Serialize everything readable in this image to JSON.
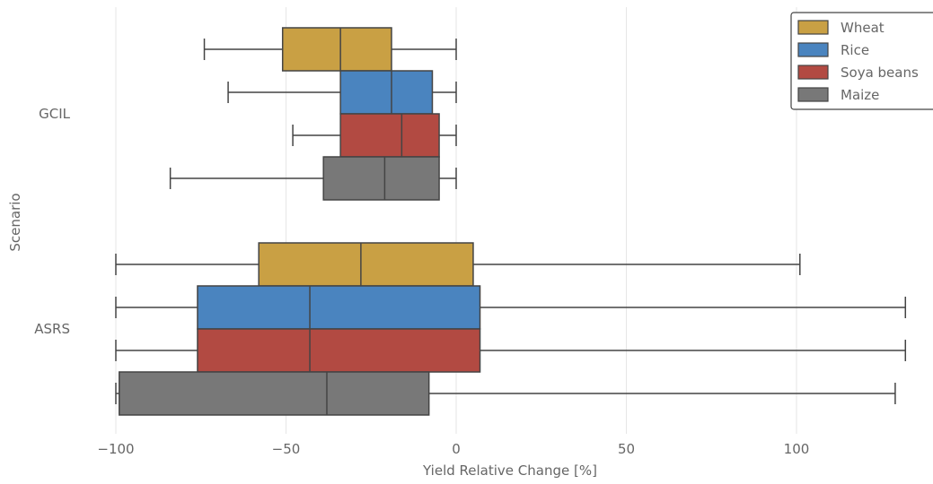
{
  "chart_data": {
    "type": "boxplot",
    "orientation": "horizontal",
    "xlabel": "Yield Relative Change [%]",
    "ylabel": "Scenario",
    "xlim": [
      -100,
      140
    ],
    "xticks": [
      -100,
      -50,
      0,
      50,
      100
    ],
    "xtick_labels": [
      "−100",
      "−50",
      "0",
      "50",
      "100"
    ],
    "grid": "vertical",
    "legend_position": "top-right",
    "categories": [
      "GCIL",
      "ASRS"
    ],
    "series": [
      {
        "name": "Wheat",
        "color": "#c9a044",
        "boxes": [
          {
            "category": "GCIL",
            "whislo": -74,
            "q1": -51,
            "median": -34,
            "q3": -19,
            "whishi": 0
          },
          {
            "category": "ASRS",
            "whislo": -100,
            "q1": -58,
            "median": -28,
            "q3": 5,
            "whishi": 101
          }
        ]
      },
      {
        "name": "Rice",
        "color": "#4a84bf",
        "boxes": [
          {
            "category": "GCIL",
            "whislo": -67,
            "q1": -34,
            "median": -19,
            "q3": -7,
            "whishi": 0
          },
          {
            "category": "ASRS",
            "whislo": -100,
            "q1": -76,
            "median": -43,
            "q3": 7,
            "whishi": 132
          }
        ]
      },
      {
        "name": "Soya beans",
        "color": "#b24a42",
        "boxes": [
          {
            "category": "GCIL",
            "whislo": -48,
            "q1": -34,
            "median": -16,
            "q3": -5,
            "whishi": 0
          },
          {
            "category": "ASRS",
            "whislo": -100,
            "q1": -76,
            "median": -43,
            "q3": 7,
            "whishi": 132
          }
        ]
      },
      {
        "name": "Maize",
        "color": "#787878",
        "boxes": [
          {
            "category": "GCIL",
            "whislo": -84,
            "q1": -39,
            "median": -21,
            "q3": -5,
            "whishi": 0
          },
          {
            "category": "ASRS",
            "whislo": -100,
            "q1": -99,
            "median": -38,
            "q3": -8,
            "whishi": 129
          }
        ]
      }
    ]
  }
}
